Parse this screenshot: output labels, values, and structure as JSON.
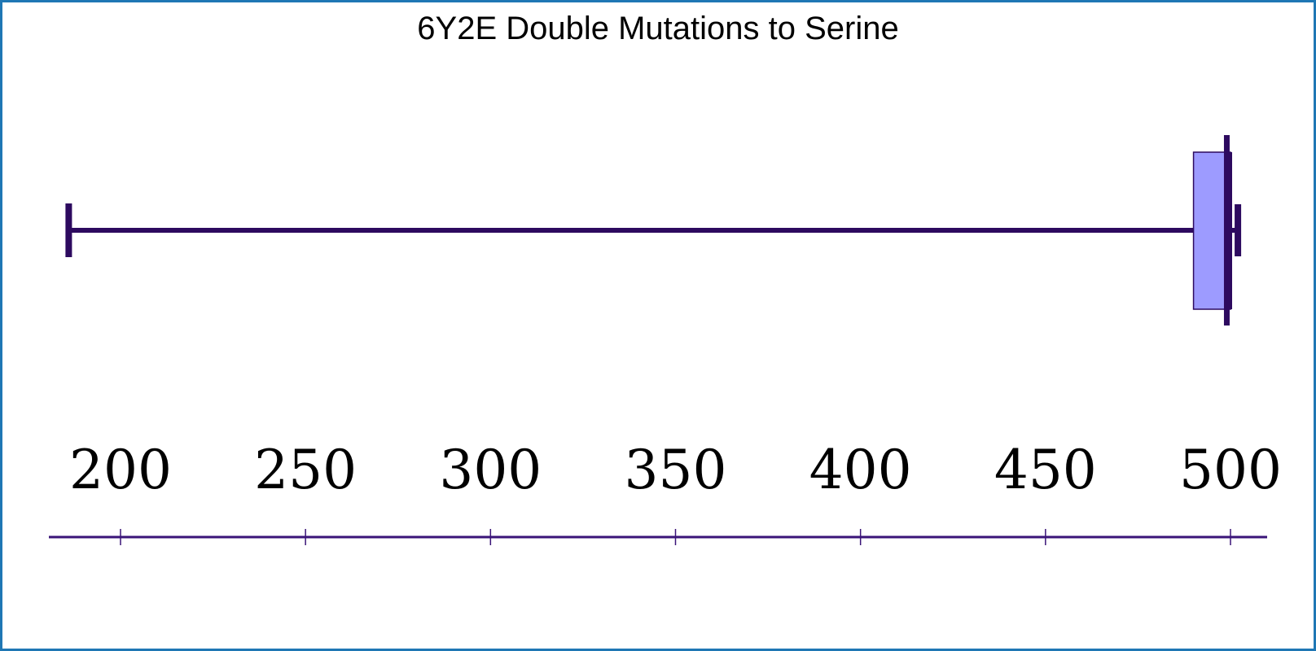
{
  "chart_data": {
    "type": "box",
    "title": "6Y2E Double Mutations to Serine",
    "orientation": "horizontal",
    "xlabel": "",
    "ylabel": "",
    "xlim": [
      180,
      520
    ],
    "ticks": [
      200,
      250,
      300,
      350,
      400,
      450,
      500
    ],
    "tick_labels": [
      "200",
      "250",
      "300",
      "350",
      "400",
      "450",
      "500"
    ],
    "series": [
      {
        "name": "6Y2E Double Mutations to Serine",
        "whisker_low": 186,
        "q1": 490,
        "median": 499,
        "q3": 500,
        "whisker_high": 502
      }
    ],
    "colors": {
      "box_fill": "#9d9bff",
      "line": "#2d0a5f",
      "axis": "#3a1478",
      "frame": "#1f77b4"
    }
  }
}
